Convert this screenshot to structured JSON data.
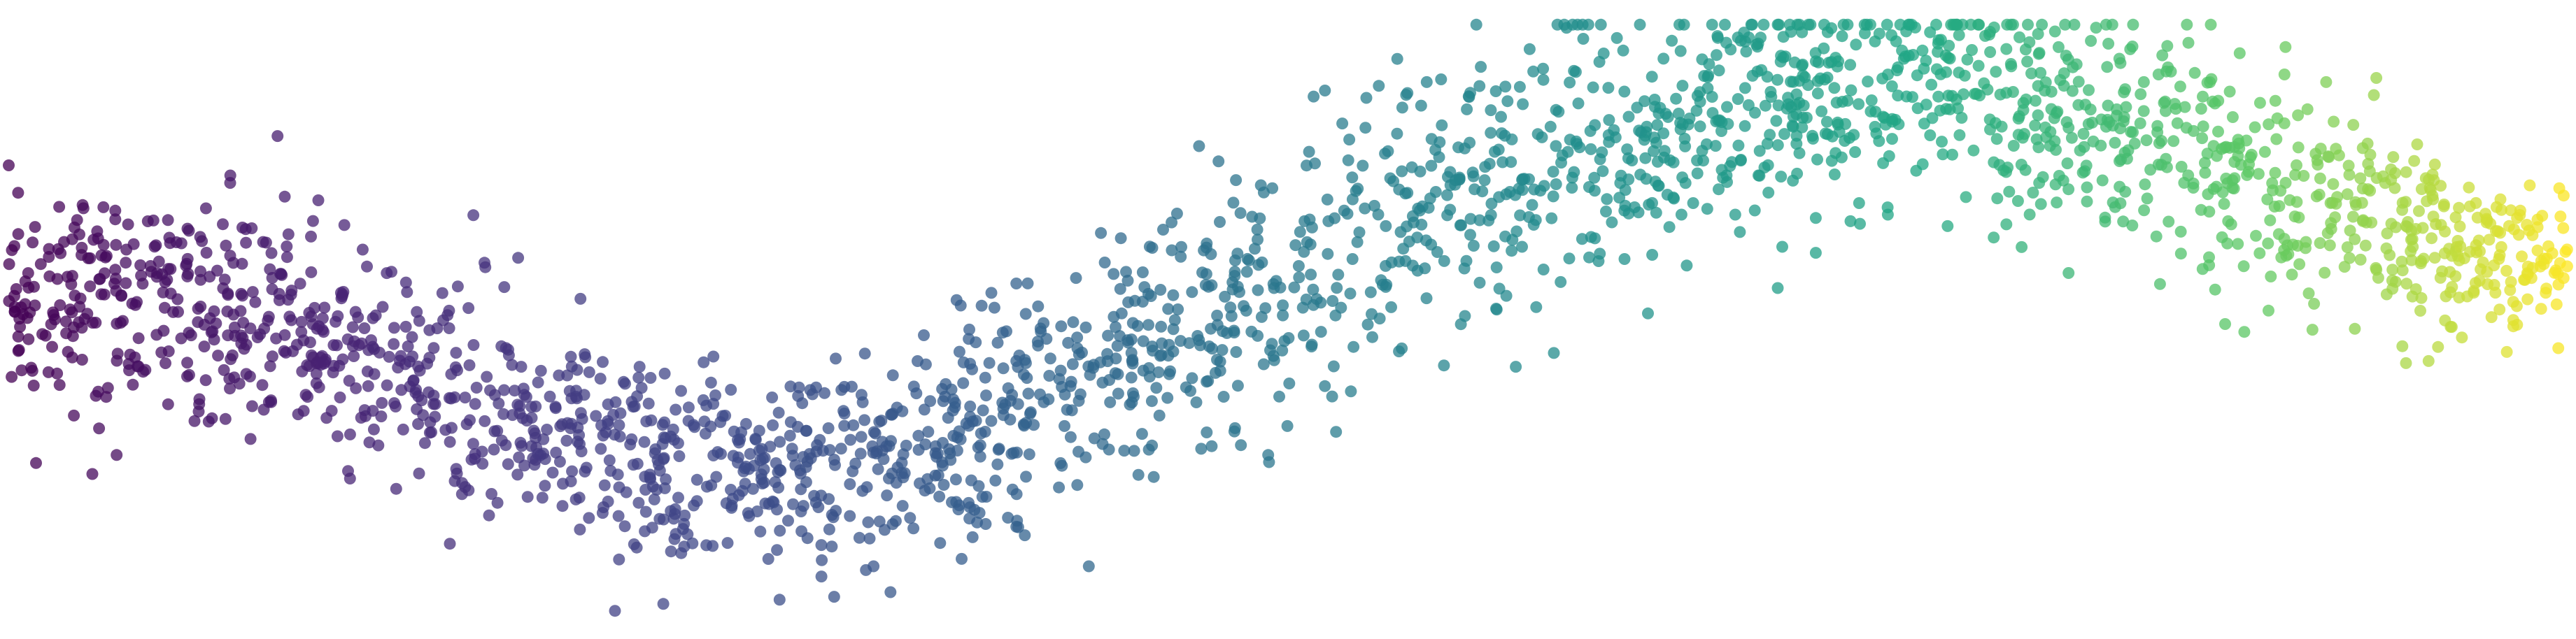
{
  "chart_data": {
    "type": "scatter",
    "title": "",
    "xlabel": "",
    "ylabel": "",
    "xlim": [
      0,
      10
    ],
    "ylim": [
      -1.6,
      1.6
    ],
    "axes_visible": false,
    "grid": false,
    "legend": "none",
    "colormap": "viridis",
    "color_encodes": "x",
    "marker_opacity": 0.75,
    "approx_point_count": 2500,
    "trend": {
      "shape": "sinusoid",
      "x_samples": [
        0.0,
        0.5,
        1.0,
        1.5,
        2.0,
        2.5,
        3.0,
        3.5,
        4.0,
        4.5,
        5.0,
        5.5,
        6.0,
        6.5,
        7.0,
        7.5,
        8.0,
        8.5,
        9.0,
        9.5,
        10.0
      ],
      "y_center": [
        0.14,
        0.08,
        0.0,
        -0.3,
        -0.5,
        -0.85,
        -0.88,
        -0.75,
        -0.5,
        -0.1,
        0.2,
        0.55,
        0.8,
        1.05,
        1.2,
        1.25,
        1.1,
        0.9,
        0.6,
        0.4,
        0.25
      ],
      "y_spread": [
        0.25,
        0.3,
        0.33,
        0.33,
        0.3,
        0.28,
        0.27,
        0.3,
        0.33,
        0.35,
        0.37,
        0.37,
        0.35,
        0.33,
        0.3,
        0.3,
        0.32,
        0.33,
        0.3,
        0.25,
        0.2
      ]
    }
  }
}
